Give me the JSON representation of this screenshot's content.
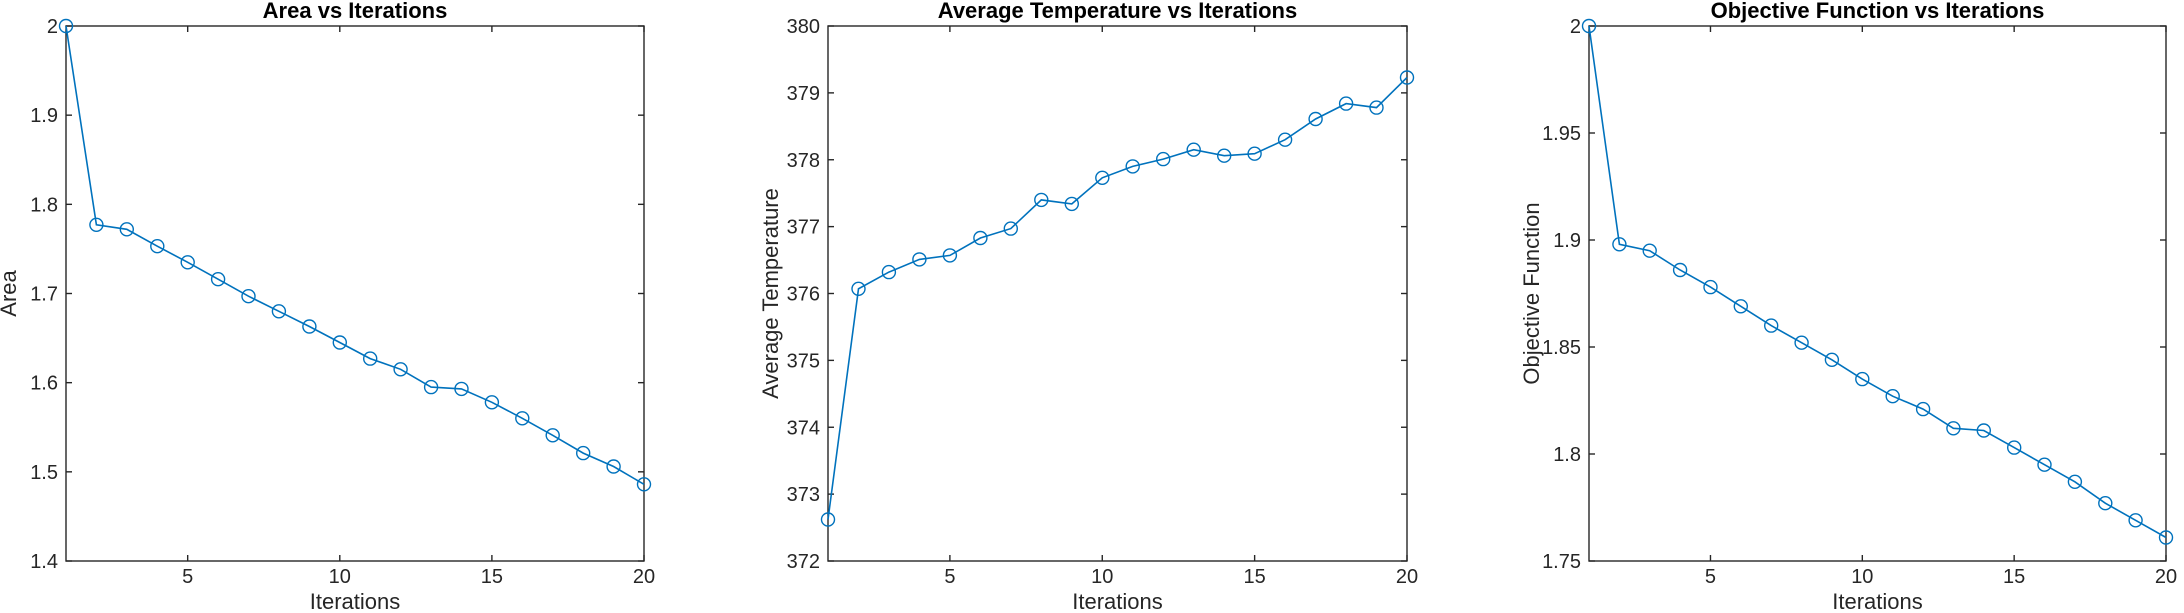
{
  "chart_data": [
    {
      "type": "line",
      "title": "Area vs Iterations",
      "xlabel": "Iterations",
      "ylabel": "Area",
      "xlim": [
        1,
        20
      ],
      "ylim": [
        1.4,
        2
      ],
      "xticks": [
        5,
        10,
        15,
        20
      ],
      "yticks": [
        1.4,
        1.5,
        1.6,
        1.7,
        1.8,
        1.9,
        2
      ],
      "ytick_labels": [
        "1.4",
        "1.5",
        "1.6",
        "1.7",
        "1.8",
        "1.9",
        "2"
      ],
      "color": "#0072BD",
      "marker": "circle",
      "grid": false,
      "x": [
        1,
        2,
        3,
        4,
        5,
        6,
        7,
        8,
        9,
        10,
        11,
        12,
        13,
        14,
        15,
        16,
        17,
        18,
        19,
        20
      ],
      "y": [
        2.0,
        1.777,
        1.772,
        1.753,
        1.735,
        1.716,
        1.697,
        1.68,
        1.663,
        1.645,
        1.627,
        1.615,
        1.595,
        1.593,
        1.578,
        1.56,
        1.541,
        1.521,
        1.506,
        1.486
      ]
    },
    {
      "type": "line",
      "title": "Average Temperature vs Iterations",
      "xlabel": "Iterations",
      "ylabel": "Average Temperature",
      "xlim": [
        1,
        20
      ],
      "ylim": [
        372,
        380
      ],
      "xticks": [
        5,
        10,
        15,
        20
      ],
      "yticks": [
        372,
        373,
        374,
        375,
        376,
        377,
        378,
        379,
        380
      ],
      "ytick_labels": [
        "372",
        "373",
        "374",
        "375",
        "376",
        "377",
        "378",
        "379",
        "380"
      ],
      "color": "#0072BD",
      "marker": "circle",
      "grid": false,
      "x": [
        1,
        2,
        3,
        4,
        5,
        6,
        7,
        8,
        9,
        10,
        11,
        12,
        13,
        14,
        15,
        16,
        17,
        18,
        19,
        20
      ],
      "y": [
        372.62,
        376.07,
        376.32,
        376.51,
        376.57,
        376.83,
        376.97,
        377.4,
        377.34,
        377.73,
        377.9,
        378.01,
        378.15,
        378.06,
        378.09,
        378.3,
        378.61,
        378.84,
        378.78,
        379.23
      ]
    },
    {
      "type": "line",
      "title": "Objective Function vs Iterations",
      "xlabel": "Iterations",
      "ylabel": "Objective Function",
      "xlim": [
        1,
        20
      ],
      "ylim": [
        1.75,
        2
      ],
      "xticks": [
        5,
        10,
        15,
        20
      ],
      "yticks": [
        1.75,
        1.8,
        1.85,
        1.9,
        1.95,
        2
      ],
      "ytick_labels": [
        "1.75",
        "1.8",
        "1.85",
        "1.9",
        "1.95",
        "2"
      ],
      "color": "#0072BD",
      "marker": "circle",
      "grid": false,
      "x": [
        1,
        2,
        3,
        4,
        5,
        6,
        7,
        8,
        9,
        10,
        11,
        12,
        13,
        14,
        15,
        16,
        17,
        18,
        19,
        20
      ],
      "y": [
        2.0,
        1.898,
        1.895,
        1.886,
        1.878,
        1.869,
        1.86,
        1.852,
        1.844,
        1.835,
        1.827,
        1.821,
        1.812,
        1.811,
        1.803,
        1.795,
        1.787,
        1.777,
        1.769,
        1.761
      ]
    }
  ]
}
